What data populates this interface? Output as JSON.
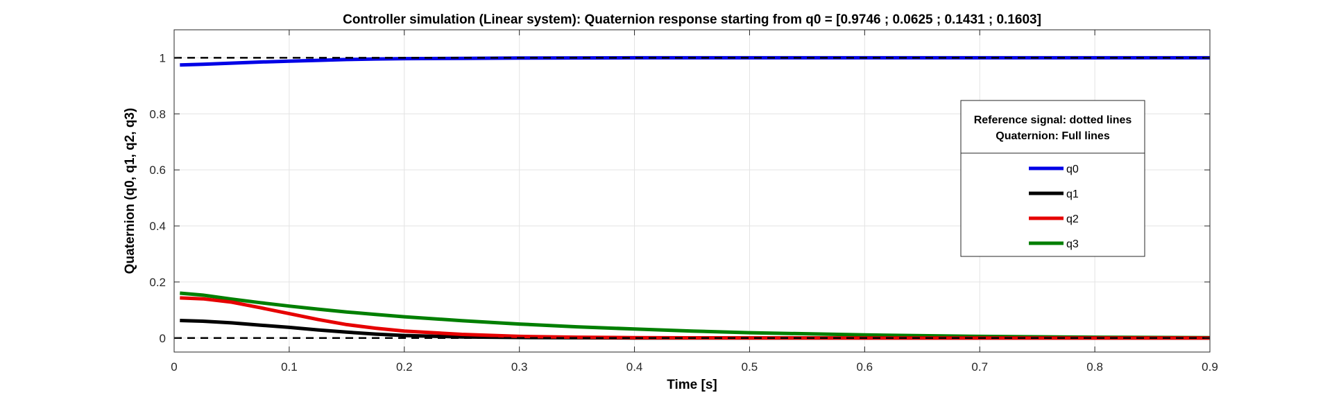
{
  "chart_data": {
    "type": "line",
    "title": "Controller simulation (Linear system): Quaternion response starting from q0 = [0.9746 ; 0.0625 ; 0.1431 ; 0.1603]",
    "xlabel": "Time [s]",
    "ylabel": "Quaternion (q0, q1, q2, q3)",
    "xlim": [
      0,
      0.9
    ],
    "ylim": [
      -0.05,
      1.1
    ],
    "xticks": [
      "0",
      "0.1",
      "0.2",
      "0.3",
      "0.4",
      "0.5",
      "0.6",
      "0.7",
      "0.8",
      "0.9"
    ],
    "yticks": [
      "0",
      "0.2",
      "0.4",
      "0.6",
      "0.8",
      "1"
    ],
    "grid": true,
    "legend": {
      "placement": "right",
      "title_line1": "Reference signal: dotted lines",
      "title_line2": "Quaternion: Full lines",
      "entries": [
        "q0",
        "q1",
        "q2",
        "q3"
      ]
    },
    "x": [
      0.005,
      0.025,
      0.05,
      0.075,
      0.1,
      0.125,
      0.15,
      0.175,
      0.2,
      0.25,
      0.3,
      0.35,
      0.4,
      0.45,
      0.5,
      0.6,
      0.7,
      0.8,
      0.9
    ],
    "series": [
      {
        "name": "q0",
        "color": "#0000e6",
        "values": [
          0.9746,
          0.977,
          0.981,
          0.985,
          0.988,
          0.991,
          0.994,
          0.996,
          0.997,
          0.998,
          0.999,
          0.9995,
          1.0,
          1.0,
          1.0,
          1.0,
          1.0,
          1.0,
          1.0
        ]
      },
      {
        "name": "q1",
        "color": "#000000",
        "values": [
          0.0625,
          0.06,
          0.054,
          0.046,
          0.038,
          0.029,
          0.021,
          0.014,
          0.009,
          0.004,
          0.002,
          0.001,
          0.0,
          0.0,
          0.0,
          0.0,
          0.0,
          0.0,
          0.0
        ]
      },
      {
        "name": "q2",
        "color": "#e60000",
        "values": [
          0.1431,
          0.14,
          0.128,
          0.108,
          0.087,
          0.066,
          0.048,
          0.035,
          0.025,
          0.013,
          0.006,
          0.003,
          0.0015,
          0.0008,
          0.0004,
          0.0001,
          0.0,
          0.0,
          0.0
        ]
      },
      {
        "name": "q3",
        "color": "#007f00",
        "values": [
          0.1603,
          0.153,
          0.139,
          0.126,
          0.114,
          0.103,
          0.093,
          0.084,
          0.076,
          0.062,
          0.05,
          0.04,
          0.032,
          0.025,
          0.019,
          0.011,
          0.006,
          0.003,
          0.0015
        ]
      }
    ],
    "reference_lines": [
      {
        "value": 1,
        "style": "dashed",
        "color": "#000000"
      },
      {
        "value": 0,
        "style": "dashed",
        "color": "#000000"
      }
    ]
  }
}
